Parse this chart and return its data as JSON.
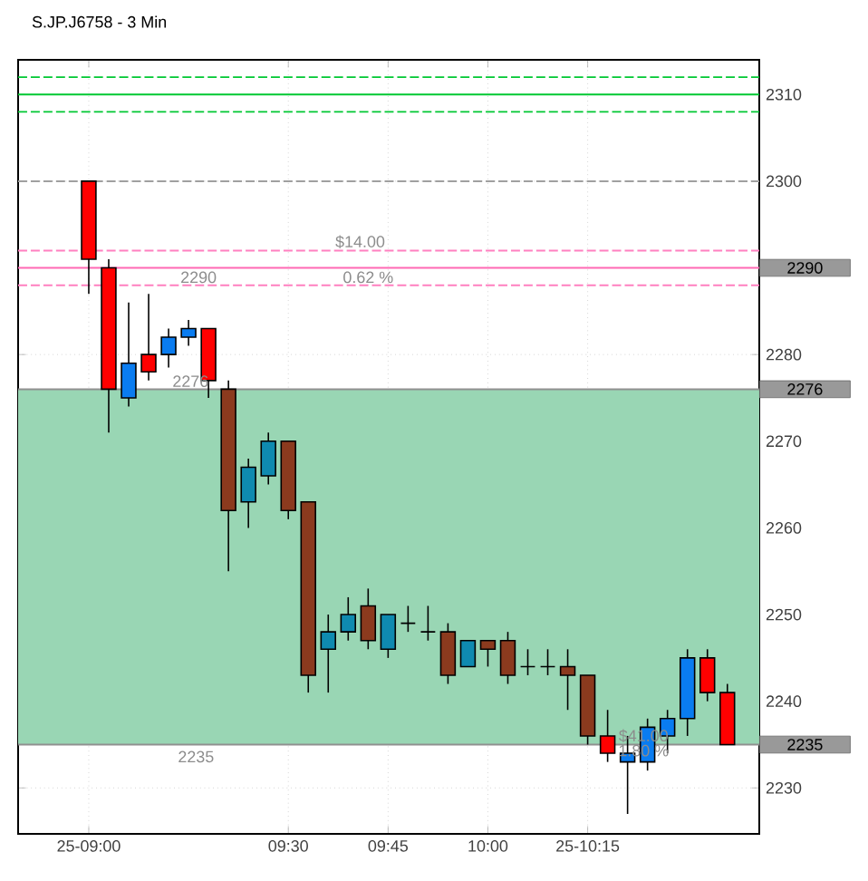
{
  "chart_data": {
    "type": "candlestick",
    "title": "S.JP.J6758 - 3 Min",
    "x": [
      9.0,
      9.05,
      9.1,
      9.15,
      9.2,
      9.25,
      9.3,
      9.35,
      9.4,
      9.45,
      9.5,
      9.55,
      9.6,
      9.65,
      9.7,
      9.75,
      9.8,
      9.85,
      9.9,
      9.95,
      10.0,
      10.05,
      10.1,
      10.15,
      10.2,
      10.25,
      10.3,
      10.35,
      10.4,
      10.45,
      10.5,
      10.55,
      10.6
    ],
    "ohlc": [
      [
        2300,
        2300,
        2287,
        2291
      ],
      [
        2290,
        2291,
        2271,
        2276
      ],
      [
        2275,
        2286,
        2274,
        2279
      ],
      [
        2280,
        2287,
        2277,
        2278
      ],
      [
        2280,
        2283,
        2278.5,
        2282
      ],
      [
        2282,
        2284,
        2281,
        2283
      ],
      [
        2283,
        2283,
        2275,
        2277
      ],
      [
        2276,
        2277,
        2255,
        2262
      ],
      [
        2263,
        2268,
        2260,
        2267
      ],
      [
        2266,
        2271,
        2265,
        2270
      ],
      [
        2270,
        2270,
        2261,
        2262
      ],
      [
        2263,
        2263,
        2241,
        2243
      ],
      [
        2246,
        2250,
        2241,
        2248
      ],
      [
        2248,
        2252,
        2247,
        2250
      ],
      [
        2251,
        2253,
        2246,
        2247
      ],
      [
        2246,
        2250,
        2245,
        2250
      ],
      [
        2249,
        2251,
        2248,
        2249
      ],
      [
        2248,
        2251,
        2247,
        2248
      ],
      [
        2248,
        2249,
        2242,
        2243
      ],
      [
        2244,
        2247,
        2244,
        2247
      ],
      [
        2247,
        2247,
        2244,
        2246
      ],
      [
        2247,
        2248,
        2242,
        2243
      ],
      [
        2244,
        2246,
        2243,
        2244
      ],
      [
        2244,
        2246,
        2243,
        2244
      ],
      [
        2244,
        2246,
        2239,
        2243
      ],
      [
        2243,
        2243,
        2235,
        2236
      ],
      [
        2236,
        2239,
        2233,
        2234
      ],
      [
        2233,
        2236,
        2227,
        2234
      ],
      [
        2233,
        2238,
        2232,
        2237
      ],
      [
        2236,
        2239,
        2234,
        2238
      ],
      [
        2238,
        2246,
        2236,
        2245
      ],
      [
        2245,
        2246,
        2240,
        2241
      ],
      [
        2241,
        2242,
        2235,
        2235
      ]
    ],
    "colors": [
      "#ff0000",
      "#ff0000",
      "#0a7cf0",
      "#ff0000",
      "#0a7cf0",
      "#0a7cf0",
      "#ff0000",
      "#8b3a1e",
      "#0f8ab0",
      "#0f8ab0",
      "#8b3a1e",
      "#8b3a1e",
      "#0f8ab0",
      "#0f8ab0",
      "#8b3a1e",
      "#0f8ab0",
      "#000000",
      "#000000",
      "#8b3a1e",
      "#0f8ab0",
      "#8b3a1e",
      "#8b3a1e",
      "#000000",
      "#000000",
      "#8b3a1e",
      "#8b3a1e",
      "#ff0000",
      "#0a7cf0",
      "#0a7cf0",
      "#0a7cf0",
      "#0a7cf0",
      "#ff0000",
      "#ff0000"
    ],
    "xlim": [
      8.823,
      10.68
    ],
    "xticks": [
      {
        "value": 9,
        "label": "25-09:00"
      },
      {
        "value": 9.5,
        "label": "09:30"
      },
      {
        "value": 9.75,
        "label": "09:45"
      },
      {
        "value": 10,
        "label": "10:00"
      },
      {
        "value": 10.25,
        "label": "25-10:15"
      }
    ],
    "ylim": [
      2224.7,
      2314
    ],
    "yticks": [
      2230,
      2240,
      2250,
      2260,
      2270,
      2280,
      2300,
      2310
    ],
    "grid": true,
    "bands": [
      {
        "axis": "y",
        "from": 2235,
        "to": 2276,
        "color": "#99d6b4"
      }
    ],
    "ref_lines": [
      {
        "axis": "y",
        "value": 2312,
        "color": "#00c832",
        "line_style": "dashed"
      },
      {
        "axis": "y",
        "value": 2310,
        "color": "#00c832",
        "line_style": "solid"
      },
      {
        "axis": "y",
        "value": 2308,
        "color": "#00c832",
        "line_style": "dashed"
      },
      {
        "axis": "y",
        "value": 2300,
        "color": "#a0a0a0",
        "line_style": "dashed"
      },
      {
        "axis": "y",
        "value": 2292,
        "color": "#ff80c0",
        "line_style": "dashed"
      },
      {
        "axis": "y",
        "value": 2288,
        "color": "#ff80c0",
        "line_style": "dashed"
      },
      {
        "axis": "y",
        "value": 2290,
        "color": "#ff69b4",
        "line_style": "solid",
        "label": "2290"
      },
      {
        "axis": "y",
        "value": 2276,
        "color": "#909090",
        "line_style": "solid",
        "label": "2276"
      },
      {
        "axis": "y",
        "value": 2235,
        "color": "#909090",
        "line_style": "solid",
        "label": "2235"
      }
    ],
    "annotations": [
      {
        "text": "2290",
        "x": 9.275,
        "y": 2288
      },
      {
        "text": "$14.00",
        "x": 9.68,
        "y": 2292
      },
      {
        "text": "0.62 %",
        "x": 9.7,
        "y": 2288
      },
      {
        "text": "2276",
        "x": 9.255,
        "y": 2276
      },
      "2235",
      {
        "text": "$41.00",
        "x": 10.39,
        "y": 2235
      },
      {
        "text": "1.80 %",
        "x": 10.39,
        "y": 2234.3
      }
    ]
  }
}
